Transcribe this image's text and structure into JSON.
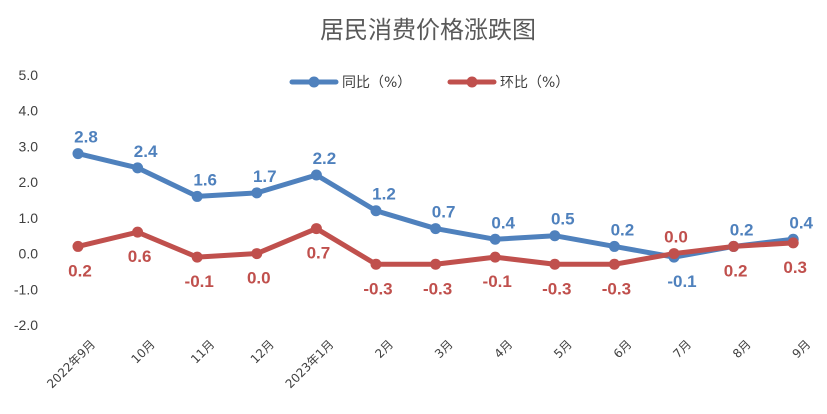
{
  "chart_data": {
    "type": "line",
    "title": "居民消费价格涨跌图",
    "categories": [
      "2022年9月",
      "10月",
      "11月",
      "12月",
      "2023年1月",
      "2月",
      "3月",
      "4月",
      "5月",
      "6月",
      "7月",
      "8月",
      "9月"
    ],
    "series": [
      {
        "name": "同比（%）",
        "color": "#4F81BD",
        "values": [
          2.8,
          2.4,
          1.6,
          1.7,
          2.2,
          1.2,
          0.7,
          0.4,
          0.5,
          0.2,
          -0.1,
          0.2,
          0.4
        ],
        "labels": [
          "2.8",
          "2.4",
          "1.6",
          "1.7",
          "2.2",
          "1.2",
          "0.7",
          "0.4",
          "0.5",
          "0.2",
          "-0.1",
          "0.2",
          "0.4"
        ]
      },
      {
        "name": "环比（%）",
        "color": "#C0504D",
        "values": [
          0.2,
          0.6,
          -0.1,
          0.0,
          0.7,
          -0.3,
          -0.3,
          -0.1,
          -0.3,
          -0.3,
          0.0,
          0.2,
          0.3
        ],
        "labels": [
          "0.2",
          "0.6",
          "-0.1",
          "0.0",
          "0.7",
          "-0.3",
          "-0.3",
          "-0.1",
          "-0.3",
          "-0.3",
          "0.0",
          "0.2",
          "0.3"
        ]
      }
    ],
    "ylim": [
      -2.0,
      5.0
    ],
    "yticks": [
      5.0,
      4.0,
      3.0,
      2.0,
      1.0,
      0.0,
      -1.0,
      -2.0
    ],
    "ytick_labels": [
      "5.0",
      "4.0",
      "3.0",
      "2.0",
      "1.0",
      "0.0",
      "-1.0",
      "-2.0"
    ],
    "grid": false,
    "legend_position": "top-center"
  }
}
